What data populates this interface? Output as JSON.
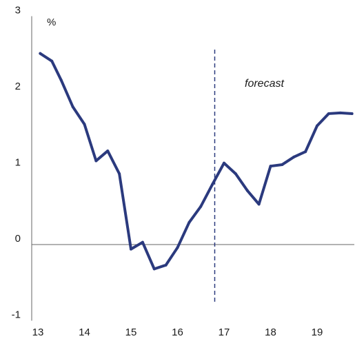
{
  "chart_data": {
    "type": "line",
    "title": "",
    "xlabel": "",
    "ylabel": "%",
    "xlim": [
      13,
      19.9
    ],
    "ylim": [
      -1,
      3
    ],
    "x_ticks": [
      13,
      14,
      15,
      16,
      17,
      18,
      19
    ],
    "x_tick_labels": [
      "13",
      "14",
      "15",
      "16",
      "17",
      "18",
      "19"
    ],
    "y_ticks": [
      -1,
      0,
      1,
      2,
      3
    ],
    "y_tick_labels": [
      "-1",
      "0",
      "1",
      "2",
      "3"
    ],
    "grid": false,
    "zero_line": true,
    "forecast_start_x": 16.8,
    "annotation": "forecast",
    "line_color": "#2b3a7e",
    "series": [
      {
        "x": [
          13.05,
          13.3,
          13.5,
          13.75,
          14.0,
          14.25,
          14.5,
          14.75,
          15.0,
          15.25,
          15.5,
          15.75,
          16.0,
          16.25,
          16.5,
          16.75,
          17.0,
          17.25,
          17.5,
          17.75,
          18.0,
          18.25,
          18.5,
          18.75,
          19.0,
          19.25,
          19.5,
          19.75
        ],
        "y": [
          2.51,
          2.41,
          2.16,
          1.81,
          1.58,
          1.1,
          1.23,
          0.93,
          -0.06,
          0.03,
          -0.32,
          -0.27,
          -0.04,
          0.29,
          0.5,
          0.79,
          1.07,
          0.93,
          0.71,
          0.53,
          1.03,
          1.05,
          1.15,
          1.22,
          1.56,
          1.72,
          1.73,
          1.72
        ]
      }
    ]
  }
}
